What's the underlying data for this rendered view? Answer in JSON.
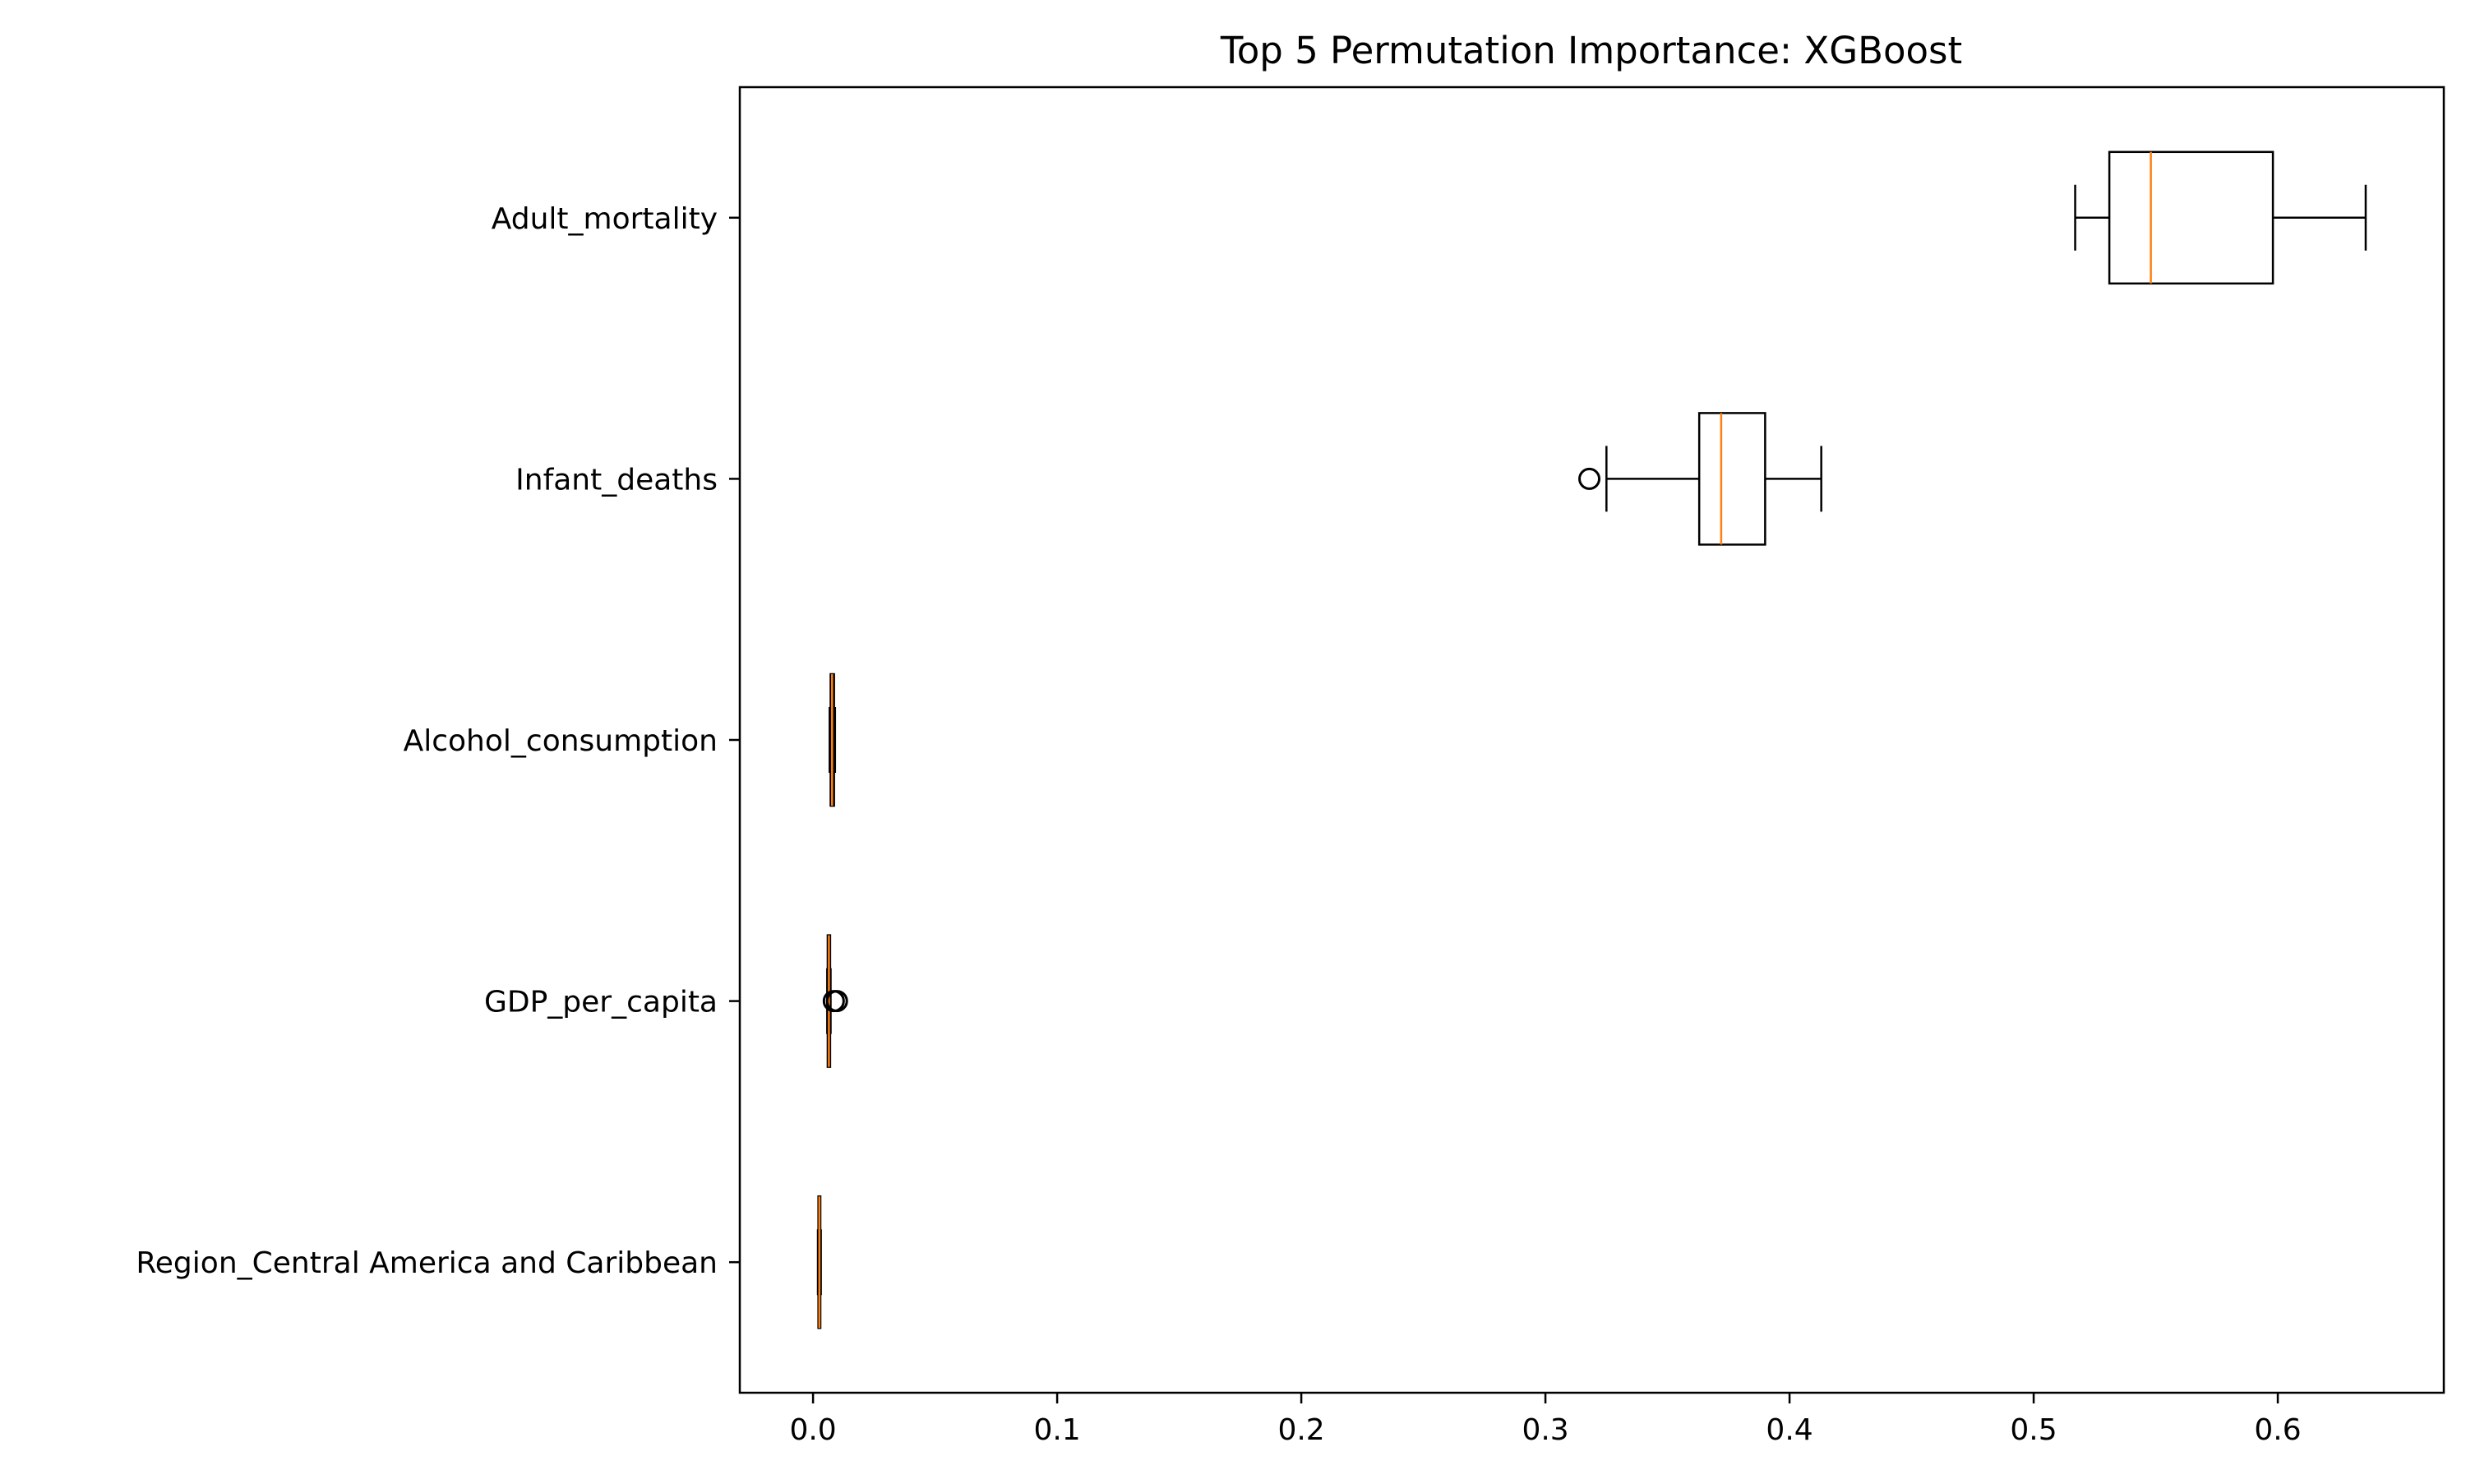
{
  "chart_data": {
    "type": "boxplot",
    "orientation": "horizontal",
    "title": "Top 5 Permutation Importance: XGBoost",
    "xlabel": "",
    "ylabel": "",
    "xlim": [
      -0.03,
      0.668
    ],
    "xticks": [
      {
        "value": 0.0,
        "label": "0.0"
      },
      {
        "value": 0.1,
        "label": "0.1"
      },
      {
        "value": 0.2,
        "label": "0.2"
      },
      {
        "value": 0.3,
        "label": "0.3"
      },
      {
        "value": 0.4,
        "label": "0.4"
      },
      {
        "value": 0.5,
        "label": "0.5"
      },
      {
        "value": 0.6,
        "label": "0.6"
      }
    ],
    "grid": false,
    "legend": "none",
    "colors": {
      "box": "#000000",
      "median": "#ff7f0e",
      "background": "#ffffff"
    },
    "categories": [
      "Adult_mortality",
      "Infant_deaths",
      "Alcohol_consumption",
      "GDP_per_capita",
      "Region_Central America and Caribbean"
    ],
    "boxes": [
      {
        "label": "Adult_mortality",
        "whislo": 0.517,
        "q1": 0.531,
        "med": 0.548,
        "q3": 0.598,
        "whishi": 0.636,
        "fliers": []
      },
      {
        "label": "Infant_deaths",
        "whislo": 0.325,
        "q1": 0.363,
        "med": 0.372,
        "q3": 0.39,
        "whishi": 0.413,
        "fliers": [
          0.318
        ]
      },
      {
        "label": "Alcohol_consumption",
        "whislo": 0.0068,
        "q1": 0.0072,
        "med": 0.0078,
        "q3": 0.0086,
        "whishi": 0.009,
        "fliers": []
      },
      {
        "label": "GDP_per_capita",
        "whislo": 0.0058,
        "q1": 0.006,
        "med": 0.0065,
        "q3": 0.007,
        "whishi": 0.0072,
        "fliers": [
          0.0085,
          0.0098
        ]
      },
      {
        "label": "Region_Central America and Caribbean",
        "whislo": 0.002,
        "q1": 0.0022,
        "med": 0.0026,
        "q3": 0.003,
        "whishi": 0.0032,
        "fliers": []
      }
    ]
  }
}
